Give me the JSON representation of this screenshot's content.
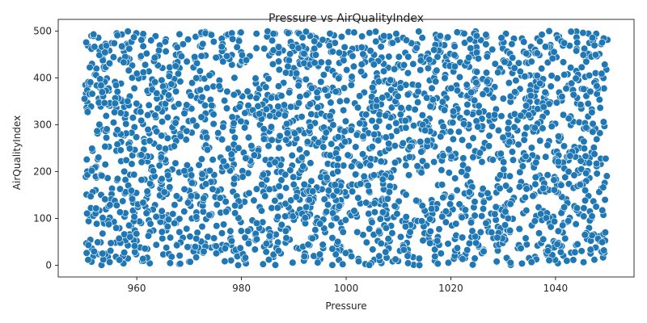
{
  "chart_data": {
    "type": "scatter",
    "title": "Pressure vs AirQualityIndex",
    "xlabel": "Pressure",
    "ylabel": "AirQualityIndex",
    "xlim": [
      945,
      1055
    ],
    "ylim": [
      -25,
      525
    ],
    "xticks": [
      960,
      980,
      1000,
      1020,
      1040
    ],
    "xtick_labels": [
      "960",
      "980",
      "1000",
      "1020",
      "1040"
    ],
    "yticks": [
      0,
      100,
      200,
      300,
      400,
      500
    ],
    "ytick_labels": [
      "0",
      "100",
      "200",
      "300",
      "400",
      "500"
    ],
    "grid": false,
    "legend": "none",
    "marker_color": "#1f77b4",
    "marker_edge_color": "#ffffff",
    "point_count": 2500,
    "x_range": [
      950,
      1050
    ],
    "y_range": [
      0,
      500
    ],
    "distribution": "uniform"
  }
}
